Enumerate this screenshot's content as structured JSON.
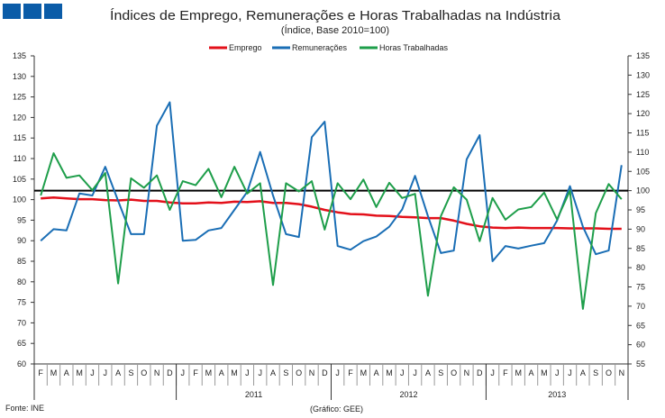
{
  "logo": {
    "colors": [
      "#0b5ca8",
      "#0b5ca8",
      "#0b5ca8"
    ]
  },
  "footer": {
    "source": "Fonte: INE",
    "credit": "(Gráfico: GEE)"
  },
  "chart_data": {
    "type": "line",
    "title": "Índices de Emprego, Remunerações e Horas Trabalhadas na Indústria",
    "subtitle": "(Índice, Base 2010=100)",
    "legend_position": "top-center",
    "grid": false,
    "ylim_left": [
      60,
      135
    ],
    "yticks_left": [
      60,
      65,
      70,
      75,
      80,
      85,
      90,
      95,
      100,
      105,
      110,
      115,
      120,
      125,
      130,
      135
    ],
    "ylim_right": [
      55,
      135
    ],
    "yticks_right": [
      55,
      60,
      65,
      70,
      75,
      80,
      85,
      90,
      95,
      100,
      105,
      110,
      115,
      120,
      125,
      130,
      135
    ],
    "reference_line": {
      "axis": "right",
      "value": 100,
      "color": "#000000"
    },
    "x_months": [
      "F",
      "M",
      "A",
      "M",
      "J",
      "J",
      "A",
      "S",
      "O",
      "N",
      "D",
      "J",
      "F",
      "M",
      "A",
      "M",
      "J",
      "J",
      "A",
      "S",
      "O",
      "N",
      "D",
      "J",
      "F",
      "M",
      "A",
      "M",
      "J",
      "J",
      "A",
      "S",
      "O",
      "N",
      "D",
      "J",
      "F",
      "M",
      "A",
      "M",
      "J",
      "J",
      "A",
      "S",
      "O",
      "N"
    ],
    "x_years": [
      {
        "label": "",
        "start": 0,
        "end": 11
      },
      {
        "label": "2011",
        "start": 11,
        "end": 23
      },
      {
        "label": "2012",
        "start": 23,
        "end": 35
      },
      {
        "label": "2013",
        "start": 35,
        "end": 46
      }
    ],
    "series": [
      {
        "name": "Emprego",
        "color": "#e3101a",
        "axis": "left",
        "values": [
          100.3,
          100.5,
          100.3,
          100.1,
          100.1,
          99.9,
          99.8,
          100.0,
          99.7,
          99.7,
          99.3,
          99.1,
          99.1,
          99.3,
          99.2,
          99.5,
          99.4,
          99.6,
          99.2,
          99.2,
          98.9,
          98.3,
          97.5,
          96.9,
          96.5,
          96.4,
          96.1,
          96.0,
          95.8,
          95.7,
          95.5,
          95.5,
          94.9,
          94.1,
          93.5,
          93.2,
          93.1,
          93.2,
          93.1,
          93.1,
          93.1,
          93.0,
          93.0,
          93.0,
          92.9,
          92.9
        ]
      },
      {
        "name": "Remunerações",
        "color": "#1a6eb5",
        "axis": "left",
        "values": [
          90.0,
          92.8,
          92.5,
          101.5,
          101.0,
          108.0,
          99.7,
          91.6,
          91.6,
          118.0,
          123.7,
          90.0,
          90.2,
          92.5,
          93.1,
          97.5,
          101.9,
          111.6,
          101.0,
          91.6,
          90.9,
          115.2,
          119.0,
          88.7,
          87.8,
          89.9,
          91.0,
          93.4,
          97.6,
          105.8,
          96.0,
          87.0,
          87.6,
          109.8,
          115.7,
          85.0,
          88.7,
          88.1,
          88.8,
          89.4,
          94.9,
          103.3,
          93.4,
          86.7,
          87.6,
          108.4
        ]
      },
      {
        "name": "Horas Trabalhadas",
        "color": "#1e9e4a",
        "axis": "left",
        "values": [
          101.0,
          111.3,
          105.3,
          105.9,
          102.3,
          106.5,
          79.6,
          105.2,
          102.9,
          105.9,
          97.5,
          104.5,
          103.5,
          107.5,
          100.6,
          108.0,
          101.5,
          104.0,
          79.2,
          104.0,
          102.0,
          104.5,
          92.7,
          104.0,
          100.1,
          104.9,
          98.2,
          104.1,
          100.4,
          101.4,
          76.6,
          96.0,
          103.0,
          100.0,
          89.9,
          100.4,
          95.1,
          97.6,
          98.2,
          101.7,
          95.2,
          102.2,
          73.4,
          96.7,
          103.8,
          100.1
        ]
      }
    ]
  }
}
